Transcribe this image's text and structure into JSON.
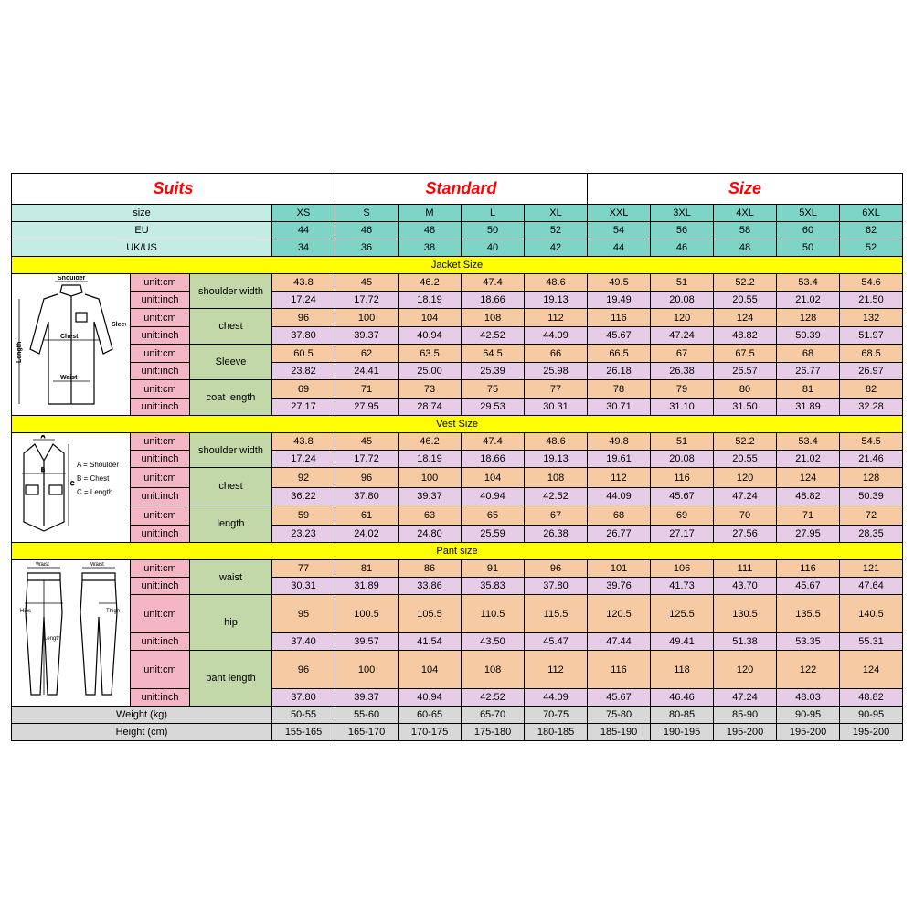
{
  "title": {
    "c1": "Suits",
    "c2": "Standard",
    "c3": "Size"
  },
  "header": {
    "size": "size",
    "eu": "EU",
    "ukus": "UK/US",
    "sizes": [
      "XS",
      "S",
      "M",
      "L",
      "XL",
      "XXL",
      "3XL",
      "4XL",
      "5XL",
      "6XL"
    ],
    "eus": [
      "44",
      "46",
      "48",
      "50",
      "52",
      "54",
      "56",
      "58",
      "60",
      "62"
    ],
    "ukuss": [
      "34",
      "36",
      "38",
      "40",
      "42",
      "44",
      "46",
      "48",
      "50",
      "52"
    ]
  },
  "sections": {
    "jacket": {
      "title": "Jacket   Size",
      "rows": [
        {
          "m": "shoulder width",
          "u": "cm",
          "v": [
            "43.8",
            "45",
            "46.2",
            "47.4",
            "48.6",
            "49.5",
            "51",
            "52.2",
            "53.4",
            "54.6"
          ]
        },
        {
          "u": "inch",
          "v": [
            "17.24",
            "17.72",
            "18.19",
            "18.66",
            "19.13",
            "19.49",
            "20.08",
            "20.55",
            "21.02",
            "21.50"
          ]
        },
        {
          "m": "chest",
          "u": "cm",
          "v": [
            "96",
            "100",
            "104",
            "108",
            "112",
            "116",
            "120",
            "124",
            "128",
            "132"
          ]
        },
        {
          "u": "inch",
          "v": [
            "37.80",
            "39.37",
            "40.94",
            "42.52",
            "44.09",
            "45.67",
            "47.24",
            "48.82",
            "50.39",
            "51.97"
          ]
        },
        {
          "m": "Sleeve",
          "u": "cm",
          "v": [
            "60.5",
            "62",
            "63.5",
            "64.5",
            "66",
            "66.5",
            "67",
            "67.5",
            "68",
            "68.5"
          ]
        },
        {
          "u": "inch",
          "v": [
            "23.82",
            "24.41",
            "25.00",
            "25.39",
            "25.98",
            "26.18",
            "26.38",
            "26.57",
            "26.77",
            "26.97"
          ]
        },
        {
          "m": "coat length",
          "u": "cm",
          "v": [
            "69",
            "71",
            "73",
            "75",
            "77",
            "78",
            "79",
            "80",
            "81",
            "82"
          ]
        },
        {
          "u": "inch",
          "v": [
            "27.17",
            "27.95",
            "28.74",
            "29.53",
            "30.31",
            "30.71",
            "31.10",
            "31.50",
            "31.89",
            "32.28"
          ]
        }
      ]
    },
    "vest": {
      "title": "Vest Size",
      "rows": [
        {
          "m": "shoulder width",
          "u": "cm",
          "v": [
            "43.8",
            "45",
            "46.2",
            "47.4",
            "48.6",
            "49.8",
            "51",
            "52.2",
            "53.4",
            "54.5"
          ]
        },
        {
          "u": "inch",
          "v": [
            "17.24",
            "17.72",
            "18.19",
            "18.66",
            "19.13",
            "19.61",
            "20.08",
            "20.55",
            "21.02",
            "21.46"
          ]
        },
        {
          "m": "chest",
          "u": "cm",
          "v": [
            "92",
            "96",
            "100",
            "104",
            "108",
            "112",
            "116",
            "120",
            "124",
            "128"
          ]
        },
        {
          "u": "inch",
          "v": [
            "36.22",
            "37.80",
            "39.37",
            "40.94",
            "42.52",
            "44.09",
            "45.67",
            "47.24",
            "48.82",
            "50.39"
          ]
        },
        {
          "m": "length",
          "u": "cm",
          "v": [
            "59",
            "61",
            "63",
            "65",
            "67",
            "68",
            "69",
            "70",
            "71",
            "72"
          ]
        },
        {
          "u": "inch",
          "v": [
            "23.23",
            "24.02",
            "24.80",
            "25.59",
            "26.38",
            "26.77",
            "27.17",
            "27.56",
            "27.95",
            "28.35"
          ]
        }
      ]
    },
    "pant": {
      "title": "Pant size",
      "rows": [
        {
          "m": "waist",
          "u": "cm",
          "v": [
            "77",
            "81",
            "86",
            "91",
            "96",
            "101",
            "106",
            "111",
            "116",
            "121"
          ]
        },
        {
          "u": "inch",
          "v": [
            "30.31",
            "31.89",
            "33.86",
            "35.83",
            "37.80",
            "39.76",
            "41.73",
            "43.70",
            "45.67",
            "47.64"
          ]
        },
        {
          "m": "hip",
          "u": "cm",
          "v": [
            "95",
            "100.5",
            "105.5",
            "110.5",
            "115.5",
            "120.5",
            "125.5",
            "130.5",
            "135.5",
            "140.5"
          ]
        },
        {
          "u": "inch",
          "v": [
            "37.40",
            "39.57",
            "41.54",
            "43.50",
            "45.47",
            "47.44",
            "49.41",
            "51.38",
            "53.35",
            "55.31"
          ]
        },
        {
          "m": "pant length",
          "u": "cm",
          "v": [
            "96",
            "100",
            "104",
            "108",
            "112",
            "116",
            "118",
            "120",
            "122",
            "124"
          ]
        },
        {
          "u": "inch",
          "v": [
            "37.80",
            "39.37",
            "40.94",
            "42.52",
            "44.09",
            "45.67",
            "46.46",
            "47.24",
            "48.03",
            "48.82"
          ]
        }
      ],
      "footer": [
        {
          "lab": "Weight (kg)",
          "v": [
            "50-55",
            "55-60",
            "60-65",
            "65-70",
            "70-75",
            "75-80",
            "80-85",
            "85-90",
            "90-95",
            "90-95"
          ]
        },
        {
          "lab": "Height (cm)",
          "v": [
            "155-165",
            "165-170",
            "170-175",
            "175-180",
            "180-185",
            "185-190",
            "190-195",
            "195-200",
            "195-200",
            "195-200"
          ]
        }
      ]
    }
  },
  "labels": {
    "unit_cm": "unit:cm",
    "unit_inch": "unit:inch"
  },
  "diagrams": {
    "jacket": {
      "shoulder": "Shoulder",
      "chest": "Chest",
      "sleeve": "Sleeve",
      "length": "Length",
      "waist": "Waist"
    },
    "vest": {
      "a": "A = Shoulder",
      "b": "B = Chest",
      "c": "C = Length"
    },
    "pant": {
      "waist": "Waist",
      "hips": "Hips",
      "length": "Length",
      "thigh": "Thigh"
    }
  },
  "colors": {
    "teal": "#7fd4c8",
    "teal_light": "#c5ebe5",
    "yellow": "#ffff00",
    "peach": "#f6cba4",
    "lilac": "#e7cce8",
    "pink": "#f4b6c5",
    "green": "#c2d8a8",
    "grey": "#d8d8d8"
  }
}
